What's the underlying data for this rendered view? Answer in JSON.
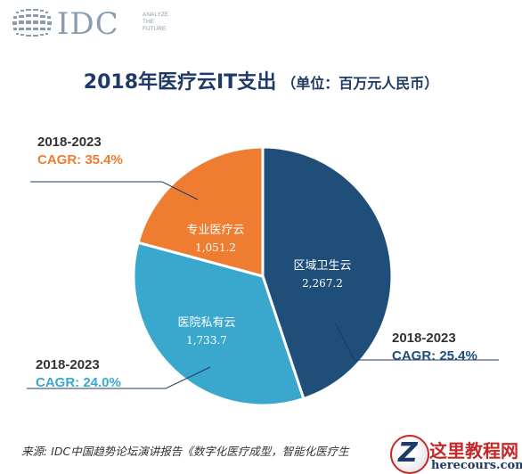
{
  "brand": {
    "wordmark": "IDC",
    "tagline": [
      "ANALYZE",
      "THE",
      "FUTURE"
    ],
    "color": "#8a9cb0"
  },
  "chart_data": {
    "type": "pie",
    "title": "2018年医疗云IT支出",
    "unit_note": "（单位：百万元人民币）",
    "slices": [
      {
        "label": "区域卫生云",
        "value": 2267.2,
        "value_label": "2,267.2",
        "color": "#1f4e79",
        "period": "2018-2023",
        "cagr": "CAGR: 25.4%"
      },
      {
        "label": "医院私有云",
        "value": 1733.7,
        "value_label": "1,733.7",
        "color": "#3aa8cc",
        "period": "2018-2023",
        "cagr": "CAGR: 24.0%"
      },
      {
        "label": "专业医疗云",
        "value": 1051.2,
        "value_label": "1,051.2",
        "color": "#ee7d32",
        "period": "2018-2023",
        "cagr": "CAGR: 35.4%"
      }
    ],
    "start": "top, clockwise",
    "cagr_colors": [
      "#1f4e79",
      "#3aa8cc",
      "#ee7d32"
    ]
  },
  "footer": {
    "source": "来源: IDC中国趋势论坛演讲报告《数字化医疗成型，智能化医疗生"
  },
  "watermark": {
    "title": "这里教程网",
    "url": "herecours.com"
  }
}
